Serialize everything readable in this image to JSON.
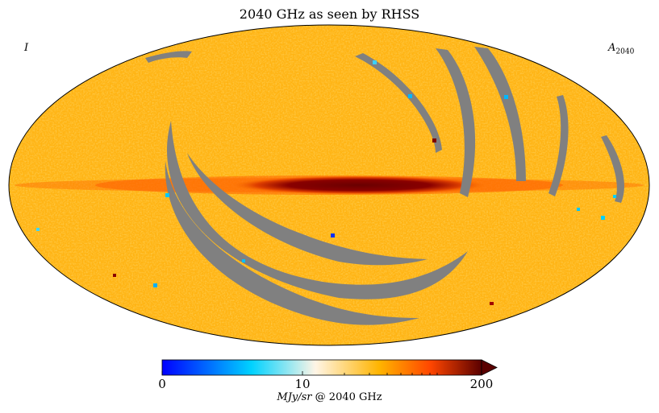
{
  "title": "2040 GHz as seen by RHSS",
  "stokes_label": "I",
  "map_label": {
    "symbol": "A",
    "subscript": "2040"
  },
  "projection": "mollweide",
  "colorbar": {
    "min": 0,
    "max": 200,
    "ticks": [
      "0",
      "10",
      "200"
    ],
    "unit_italic": "MJy/sr",
    "unit_rest": "@ 2040 GHz",
    "extend": "max",
    "colors": [
      "#0000ff",
      "#00d2ff",
      "#fff5e6",
      "#ffb400",
      "#ff4600",
      "#5a0000"
    ]
  },
  "colors": {
    "masked": "#808080",
    "background_map": "#ffb414",
    "galactic_plane": "#7a0000"
  }
}
